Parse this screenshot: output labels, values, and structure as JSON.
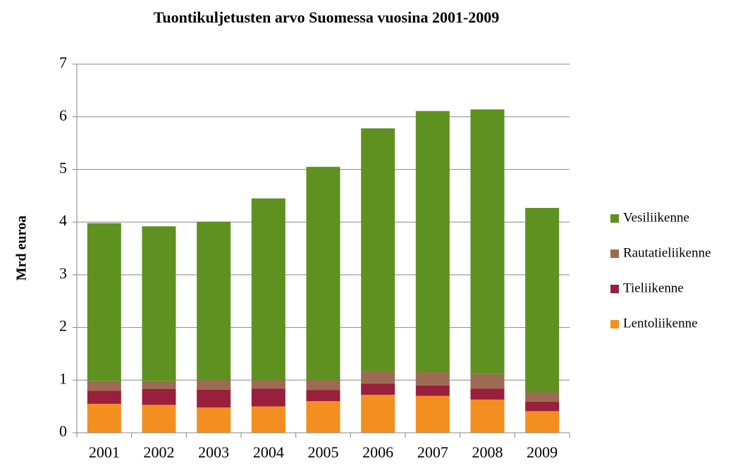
{
  "chart_data": {
    "type": "stacked_bar",
    "title": "Tuontikuljetusten arvo Suomessa vuosina 2001-2009",
    "y_label": "Mrd euroa",
    "categories": [
      "2001",
      "2002",
      "2003",
      "2004",
      "2005",
      "2006",
      "2007",
      "2008",
      "2009"
    ],
    "series": [
      {
        "name": "Lentoliikenne",
        "color": "#f28f20",
        "values": [
          0.55,
          0.53,
          0.48,
          0.5,
          0.6,
          0.72,
          0.7,
          0.63,
          0.41
        ]
      },
      {
        "name": "Tieliikenne",
        "color": "#9a1f3c",
        "values": [
          0.25,
          0.3,
          0.34,
          0.34,
          0.21,
          0.21,
          0.2,
          0.21,
          0.18
        ]
      },
      {
        "name": "Rautatieliikenne",
        "color": "#9c6b51",
        "values": [
          0.18,
          0.15,
          0.18,
          0.16,
          0.19,
          0.24,
          0.25,
          0.28,
          0.18
        ]
      },
      {
        "name": "Vesiliikenne",
        "color": "#5e911f",
        "values": [
          3.0,
          2.94,
          3.01,
          3.45,
          4.05,
          4.61,
          4.96,
          5.02,
          3.5
        ]
      }
    ],
    "ylim": [
      0,
      7
    ],
    "yticks": [
      0,
      1,
      2,
      3,
      4,
      5,
      6,
      7
    ],
    "grid": true,
    "legend": "right"
  }
}
